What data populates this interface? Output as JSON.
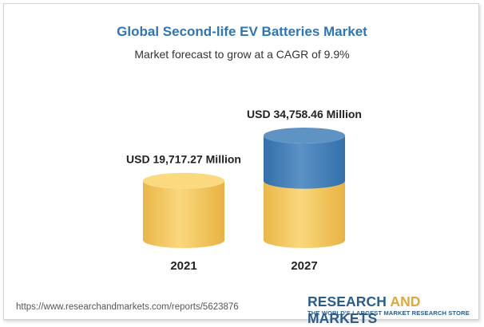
{
  "chart_data": {
    "type": "bar",
    "title": "Global Second-life EV Batteries Market",
    "subtitle": "Market forecast to grow at a CAGR of 9.9%",
    "categories": [
      "2021",
      "2027"
    ],
    "values": [
      19717.27,
      34758.46
    ],
    "data_labels": [
      "USD 19,717.27 Million",
      "USD 34,758.46 Million"
    ],
    "colors": {
      "base": "#f5c85c",
      "growth": "#3f7fb8"
    }
  },
  "footer": {
    "source_url": "https://www.researchandmarkets.com/reports/5623876",
    "brand_part1": "RESEARCH ",
    "brand_part2": "AND",
    "brand_part3": " MARKETS",
    "tagline": "THE WORLD'S LARGEST MARKET RESEARCH STORE"
  }
}
